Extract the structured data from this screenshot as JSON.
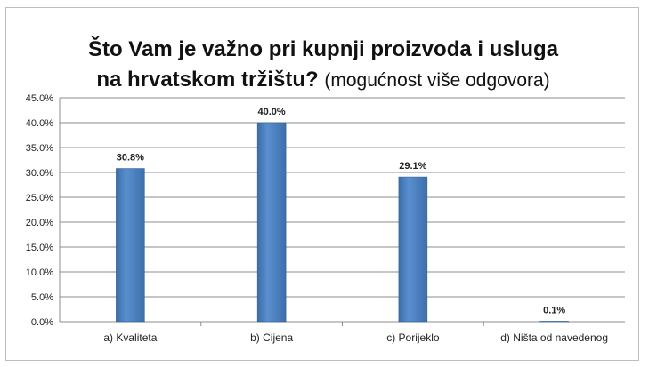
{
  "chart_data": {
    "type": "bar",
    "title_line1": "Što Vam je važno pri kupnji proizvoda i usluga",
    "title_line2_bold": "na hrvatskom tržištu?",
    "title_line2_normal": "(mogućnost više odgovora)",
    "categories": [
      "a) Kvaliteta",
      "b) Cijena",
      "c) Porijeklo",
      "d) Ništa od navedenog"
    ],
    "values": [
      30.8,
      40.0,
      29.1,
      0.1
    ],
    "value_labels": [
      "30.8%",
      "40.0%",
      "29.1%",
      "0.1%"
    ],
    "y_ticks": [
      "0.0%",
      "5.0%",
      "10.0%",
      "15.0%",
      "20.0%",
      "25.0%",
      "30.0%",
      "35.0%",
      "40.0%",
      "45.0%"
    ],
    "ylim": [
      0,
      45
    ],
    "grid": true,
    "bar_color": "#4f81bd",
    "xlabel": "",
    "ylabel": ""
  }
}
